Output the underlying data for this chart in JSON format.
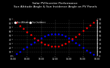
{
  "title": "Solar PV/Inverter Performance\nSun Altitude Angle & Sun Incidence Angle on PV Panels",
  "title_fontsize": 3.2,
  "x_time": [
    6,
    6.5,
    7,
    7.5,
    8,
    8.5,
    9,
    9.5,
    10,
    10.5,
    11,
    11.5,
    12,
    12.5,
    13,
    13.5,
    14,
    14.5,
    15,
    15.5,
    16,
    16.5,
    17,
    17.5,
    18
  ],
  "altitude": [
    0,
    5,
    10,
    16,
    22,
    28,
    34,
    39,
    44,
    48,
    51,
    53,
    54,
    53,
    51,
    48,
    43,
    38,
    32,
    26,
    20,
    14,
    8,
    3,
    0
  ],
  "incidence": [
    90,
    82,
    74,
    66,
    58,
    51,
    44,
    38,
    33,
    29,
    26,
    24,
    23,
    24,
    26,
    30,
    35,
    41,
    47,
    54,
    61,
    68,
    75,
    82,
    88
  ],
  "altitude_color": "#0000ff",
  "incidence_color": "#ff0000",
  "bg_color": "#000000",
  "plot_bg": "#000000",
  "tick_color": "#ffffff",
  "label_color": "#ffffff",
  "ylim_left": [
    0,
    90
  ],
  "ylim_right": [
    0,
    90
  ],
  "xlim": [
    6,
    18
  ],
  "yticks_left": [
    0,
    10,
    20,
    30,
    40,
    50,
    60,
    70,
    80,
    90
  ],
  "yticks_right": [
    0,
    10,
    20,
    30,
    40,
    50,
    60,
    70,
    80,
    90
  ],
  "xtick_labels": [
    "06:00",
    "08:00",
    "10:00",
    "12:00",
    "14:00",
    "16:00",
    "18:00"
  ],
  "xtick_positions": [
    6,
    8,
    10,
    12,
    14,
    16,
    18
  ],
  "legend_altitude": "Sun Altitude",
  "legend_incidence": "Sun Incidence",
  "marker_size": 1.8,
  "grid_color": "#555555",
  "grid_style": ":"
}
